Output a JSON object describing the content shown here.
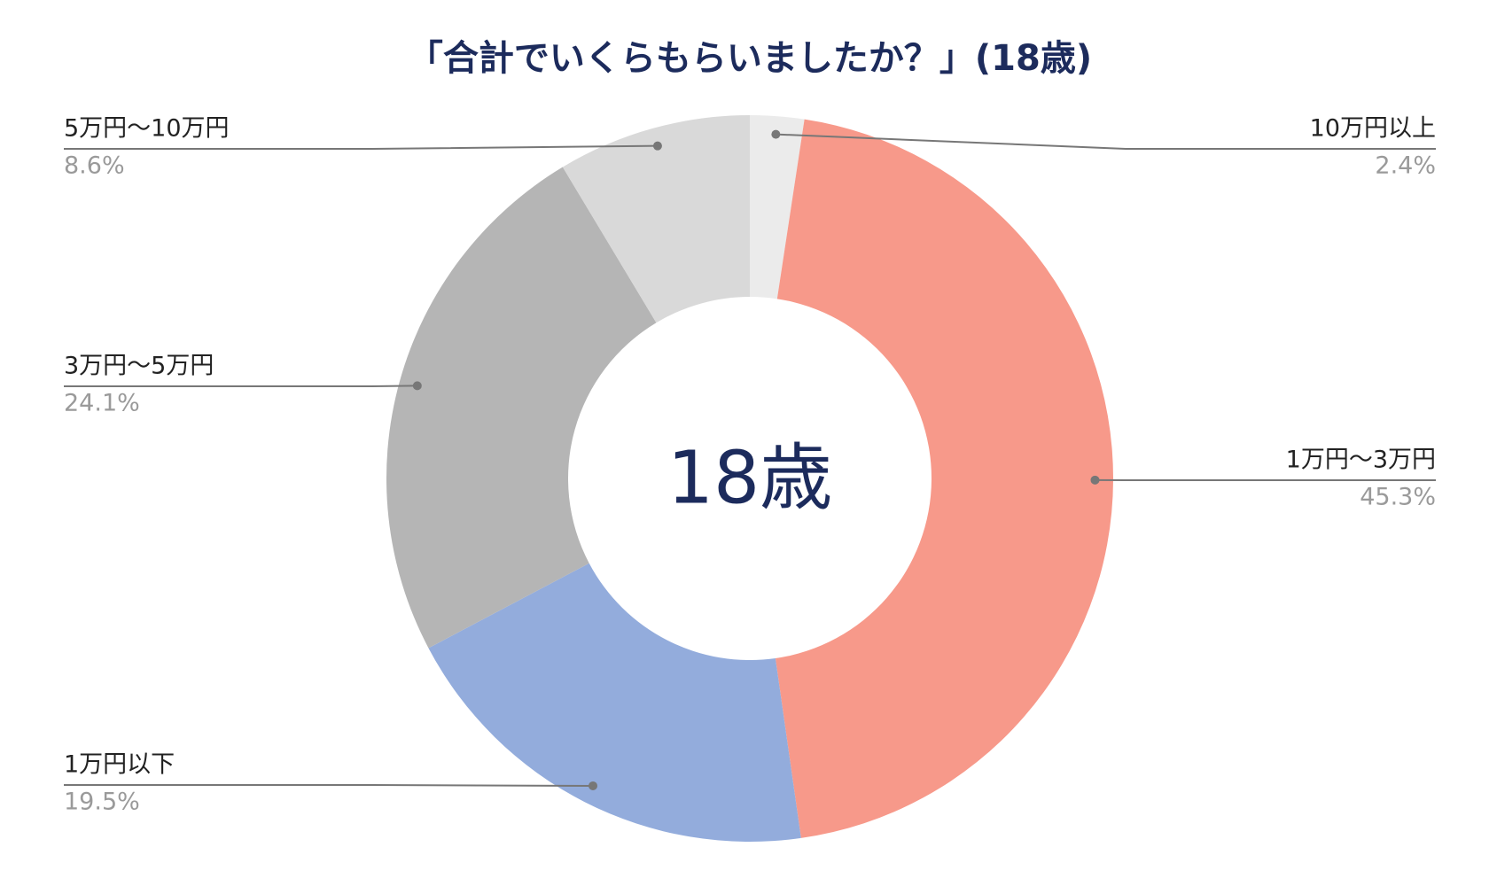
{
  "chart_data": {
    "type": "pie",
    "title": "「合計でいくらもらいましたか？」(18歳)",
    "center_label": "18歳",
    "categories": [
      "10万円以上",
      "1万円〜3万円",
      "1万円以下",
      "3万円〜5万円",
      "5万円〜10万円"
    ],
    "values": [
      2.4,
      45.3,
      19.5,
      24.1,
      8.6
    ],
    "value_labels": [
      "2.4%",
      "45.3%",
      "19.5%",
      "24.1%",
      "8.6%"
    ],
    "colors": [
      "#ebebeb",
      "#f7998a",
      "#93acdc",
      "#b5b5b5",
      "#d9d9d9"
    ]
  }
}
